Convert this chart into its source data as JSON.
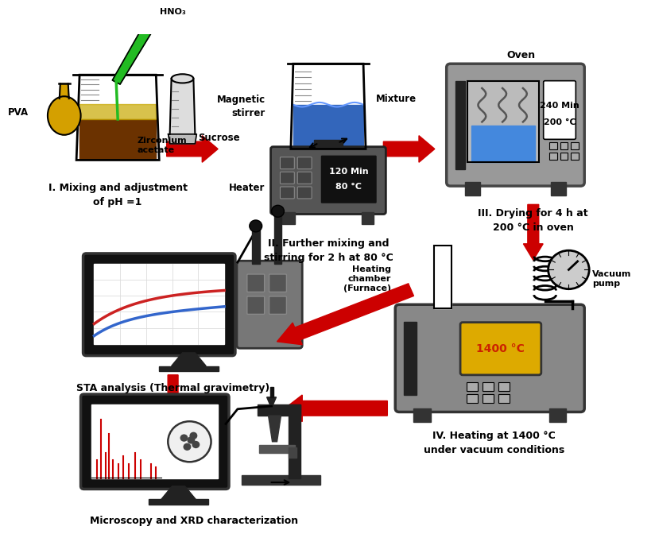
{
  "background_color": "#ffffff",
  "arrow_color": "#cc0000",
  "step1_label": "I. Mixing and adjustment\nof pH =1",
  "step2_label": "II. Further mixing and\nstirring for 2 h at 80 °C",
  "step3_label": "III. Drying for 4 h at\n200 °C in oven",
  "step4_label": "IV. Heating at 1400 °C\nunder vacuum conditions",
  "step_sta_label": "STA analysis (Thermal gravimetry)",
  "step_mic_label": "Microscopy and XRD characterization",
  "oven_label": "Oven",
  "heating_label": "Heating\nchamber\n(Furnace)",
  "vacuum_label": "Vacuum\npump",
  "magnetic_label": "Magnetic\nstirrer",
  "heater_label": "Heater",
  "mixture_label": "Mixture",
  "pva_label": "PVA",
  "hno3_label": "HNO₃",
  "sucrose_label": "Sucrose",
  "zr_label": "Zirconium\nacetate",
  "display2_line1": "80 °C",
  "display2_line2": "120 Min",
  "display3_line1": "200 °C",
  "display3_line2": "240 Min",
  "display4": "1400 °C"
}
